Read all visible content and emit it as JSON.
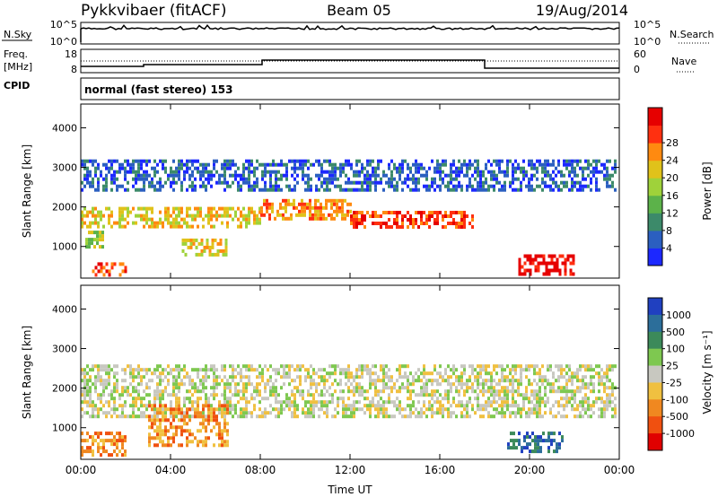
{
  "header": {
    "radar": "Pykkvibaer (fitACF)",
    "beam": "Beam 05",
    "date": "19/Aug/2014"
  },
  "panels": {
    "noise": {
      "left_label": "N.Sky",
      "left_ticks": [
        "10^5",
        "10^0"
      ],
      "right_ticks": [
        "10^5",
        "10^0"
      ],
      "right_label": "N.Search"
    },
    "freq": {
      "left_label_1": "Freq.",
      "left_label_2": "[MHz]",
      "left_ticks": [
        "18",
        "8"
      ],
      "right_ticks": [
        "60",
        "0"
      ],
      "right_label": "Nave"
    },
    "cpid": {
      "left_label": "CPID",
      "text": "normal (fast stereo) 153"
    }
  },
  "chart_data": [
    {
      "type": "heatmap",
      "name": "power",
      "ylabel": "Slant Range [km]",
      "xlabel": "",
      "x_ticks": [
        "00:00",
        "04:00",
        "08:00",
        "12:00",
        "16:00",
        "20:00",
        "00:00"
      ],
      "y_ticks": [
        "1000",
        "2000",
        "3000",
        "4000"
      ],
      "xlim": [
        0,
        24
      ],
      "ylim": [
        200,
        4600
      ],
      "colorbar": {
        "label": "Power [dB]",
        "ticks": [
          "4",
          "8",
          "12",
          "16",
          "20",
          "24",
          "28"
        ],
        "colors": [
          "#1c28ff",
          "#2b5fc0",
          "#3c8a6a",
          "#5cb24a",
          "#9fd23a",
          "#e0c21a",
          "#ff8a10",
          "#ff3010",
          "#e60000"
        ]
      },
      "regions": [
        {
          "t0": 0.0,
          "t1": 8.0,
          "r0": 1500,
          "r1": 2000,
          "level": 5
        },
        {
          "t0": 8.0,
          "t1": 12.0,
          "r0": 1700,
          "r1": 2200,
          "level": 6
        },
        {
          "t0": 12.0,
          "t1": 17.5,
          "r0": 1500,
          "r1": 1900,
          "level": 7
        },
        {
          "t0": 0.2,
          "t1": 1.0,
          "r0": 1000,
          "r1": 1400,
          "level": 4
        },
        {
          "t0": 4.5,
          "t1": 6.5,
          "r0": 800,
          "r1": 1200,
          "level": 5
        },
        {
          "t0": 0.5,
          "t1": 2.0,
          "r0": 300,
          "r1": 600,
          "level": 7
        },
        {
          "t0": 19.5,
          "t1": 22.0,
          "r0": 300,
          "r1": 800,
          "level": 8
        },
        {
          "t0": 0.0,
          "t1": 23.8,
          "r0": 2400,
          "r1": 3200,
          "level": 1
        }
      ]
    },
    {
      "type": "heatmap",
      "name": "velocity",
      "ylabel": "Slant Range [km]",
      "xlabel": "Time UT",
      "x_ticks": [
        "00:00",
        "04:00",
        "08:00",
        "12:00",
        "16:00",
        "20:00",
        "00:00"
      ],
      "y_ticks": [
        "1000",
        "2000",
        "3000",
        "4000"
      ],
      "xlim": [
        0,
        24
      ],
      "ylim": [
        200,
        4600
      ],
      "colorbar": {
        "label": "Velocity [m s⁻¹]",
        "ticks": [
          "1000",
          "500",
          "100",
          "25",
          "-25",
          "-100",
          "-500",
          "-1000"
        ],
        "colors": [
          "#2040c0",
          "#2c6e9a",
          "#3c8a5a",
          "#7ec850",
          "#c8c8c0",
          "#f0c040",
          "#f08820",
          "#f05010",
          "#e00000"
        ]
      },
      "regions": [
        {
          "t0": 0.0,
          "t1": 23.8,
          "r0": 1300,
          "r1": 2600,
          "level": 4
        },
        {
          "t0": 3.0,
          "t1": 6.5,
          "r0": 600,
          "r1": 1600,
          "level": 6
        },
        {
          "t0": 0.0,
          "t1": 2.0,
          "r0": 300,
          "r1": 900,
          "level": 6
        },
        {
          "t0": 19.0,
          "t1": 21.5,
          "r0": 400,
          "r1": 900,
          "level": 1
        }
      ]
    }
  ]
}
